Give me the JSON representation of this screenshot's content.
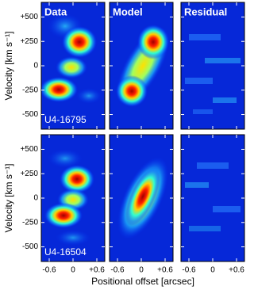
{
  "chart_data": {
    "type": "heatmap",
    "columns": [
      "Data",
      "Model",
      "Residual"
    ],
    "rows": [
      "U4-16795",
      "U4-16504"
    ],
    "y_label": "Velocity [km s⁻¹]",
    "x_label": "Positional offset [arcsec]",
    "xlim": [
      -0.8,
      0.8
    ],
    "xticks": [
      {
        "value": -0.6,
        "label": "-0.6"
      },
      0,
      {
        "value": 0.6,
        "label": "+0.6"
      }
    ],
    "ylim": [
      -650,
      650
    ],
    "yticks": [
      {
        "value": 500,
        "label": "+500"
      },
      {
        "value": 250,
        "label": "+250"
      },
      0,
      -250,
      -500
    ]
  }
}
